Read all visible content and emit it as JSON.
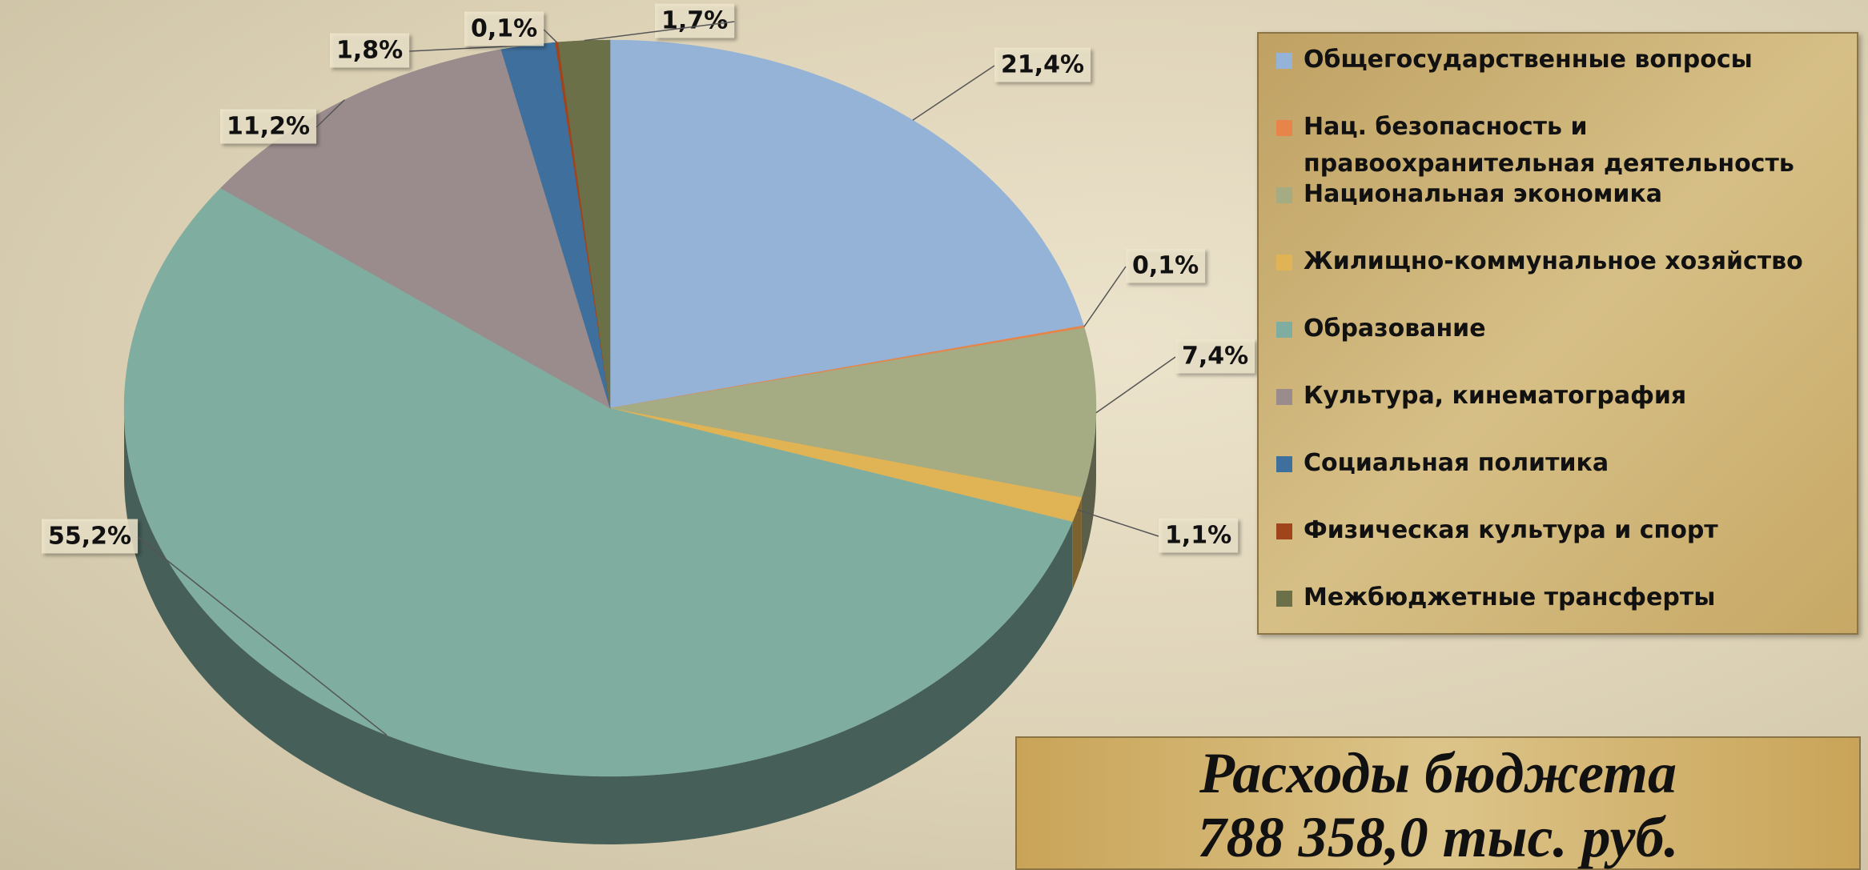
{
  "chart_data": {
    "type": "pie",
    "title": "Расходы бюджета",
    "subtitle": "788 358,0 тыс. руб.",
    "categories": [
      "Общегосударственные вопросы",
      "Нац. безопасность и правоохранительная деятельность",
      "Национальная экономика",
      "Жилищно-коммунальное хозяйство",
      "Образование",
      "Культура, кинематография",
      "Социальная политика",
      "Физическая культура и спорт",
      "Межбюджетные трансферты"
    ],
    "values": [
      21.4,
      0.1,
      7.4,
      1.1,
      55.2,
      11.2,
      1.8,
      0.1,
      1.7
    ],
    "value_labels": [
      "21,4%",
      "0,1%",
      "7,4%",
      "1,1%",
      "55,2%",
      "11,2%",
      "1,8%",
      "0,1%",
      "1,7%"
    ],
    "colors": [
      "#95b3d7",
      "#e6844a",
      "#a5ab82",
      "#e0b355",
      "#7fada0",
      "#9a8c8c",
      "#3f6f9c",
      "#a0441c",
      "#6b7048"
    ],
    "legend": "right"
  }
}
